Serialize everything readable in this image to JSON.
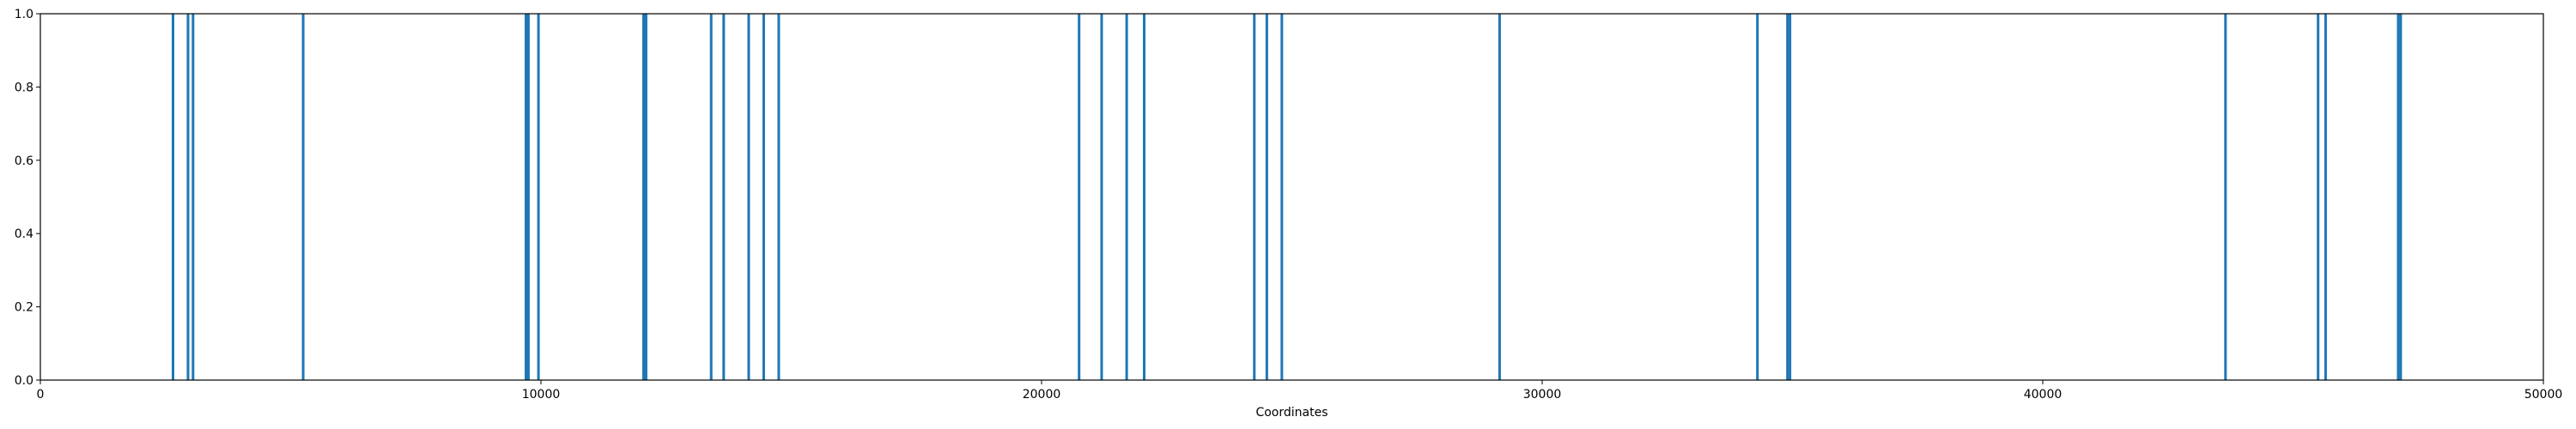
{
  "chart_data": {
    "type": "bar",
    "xlabel": "Coordinates",
    "ylabel": "",
    "title": "",
    "xlim": [
      0,
      50000
    ],
    "ylim": [
      0.0,
      1.0
    ],
    "xticks": [
      0,
      10000,
      20000,
      30000,
      40000,
      50000
    ],
    "xtick_labels": [
      "0",
      "10000",
      "20000",
      "30000",
      "40000",
      "50000"
    ],
    "yticks": [
      0.0,
      0.2,
      0.4,
      0.6,
      0.8,
      1.0
    ],
    "ytick_labels": [
      "0.0",
      "0.2",
      "0.4",
      "0.6",
      "0.8",
      "1.0"
    ],
    "grid": false,
    "bar_color": "#1f77b4",
    "x": [
      2650,
      2950,
      3050,
      5250,
      9700,
      9750,
      9950,
      12050,
      12100,
      13400,
      13650,
      14150,
      14450,
      14750,
      20750,
      21200,
      21700,
      22050,
      24250,
      24500,
      24800,
      29150,
      34300,
      34900,
      34950,
      43650,
      45500,
      45650,
      47100,
      47150
    ],
    "values": [
      1,
      1,
      1,
      1,
      1,
      1,
      1,
      1,
      1,
      1,
      1,
      1,
      1,
      1,
      1,
      1,
      1,
      1,
      1,
      1,
      1,
      1,
      1,
      1,
      1,
      1,
      1,
      1,
      1,
      1
    ]
  }
}
